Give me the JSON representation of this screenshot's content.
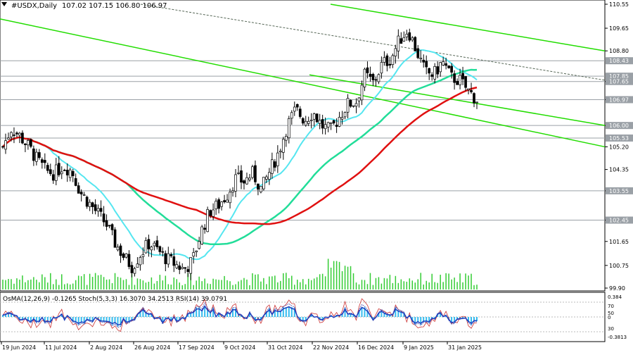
{
  "header": {
    "symbol": "#USDX,Daily",
    "ohlc": "107.02 107.15 106.80 106.97"
  },
  "indicator_label": "OsMA(12,26,9) -0.1265  Stoch(5,3,3) 16.3070 34.2513  RSI(14) 39.0791",
  "colors": {
    "background": "#ffffff",
    "candles": "#000000",
    "grid": "#c8c8c8",
    "level_lines": "#9aa0a6",
    "channel": "#22dd00",
    "ma_fast": "#55e6f0",
    "ma_mid": "#22dd99",
    "ma_slow": "#e01010",
    "volume": "#33cc33",
    "osma": "#33bbee",
    "rsi": "#1f3fbf",
    "stoch_main": "#cc3333",
    "stoch_signal": "#4444aa"
  },
  "chart_data": {
    "type": "candlestick",
    "symbol": "#USDX",
    "timeframe": "Daily",
    "price_axis": {
      "min": 99.9,
      "max": 110.55,
      "ticks": [
        "110.55",
        "109.65",
        "108.80",
        "107.65",
        "106.97",
        "106.00",
        "105.20",
        "104.35",
        "103.55",
        "102.45",
        "101.65",
        "100.75",
        "99.90"
      ],
      "highlighted_levels": [
        "108.43",
        "107.85",
        "107.65",
        "106.97",
        "106.00",
        "105.53",
        "103.55",
        "102.45"
      ]
    },
    "date_labels": [
      "19 Jun 2024",
      "11 Jul 2024",
      "2 Aug 2024",
      "26 Aug 2024",
      "17 Sep 2024",
      "9 Oct 2024",
      "31 Oct 2024",
      "22 Nov 2024",
      "16 Dec 2024",
      "9 Jan 2025",
      "31 Jan 2025"
    ],
    "close_path": [
      105.2,
      105.9,
      105.6,
      105.2,
      104.7,
      104.3,
      104.2,
      104.5,
      104.3,
      103.5,
      103.1,
      102.7,
      102.3,
      101.6,
      101.1,
      100.7,
      101.2,
      101.6,
      101.3,
      101.0,
      100.8,
      100.6,
      100.9,
      102.0,
      102.8,
      103.0,
      103.4,
      104.0,
      103.9,
      104.2,
      103.6,
      104.3,
      105.0,
      106.0,
      106.6,
      106.2,
      106.5,
      106.0,
      105.8,
      106.3,
      106.8,
      106.9,
      107.9,
      107.6,
      108.3,
      108.5,
      109.2,
      109.6,
      108.8,
      108.0,
      107.9,
      108.4,
      107.8,
      107.7,
      107.3,
      106.97
    ],
    "levels": [
      108.43,
      107.85,
      107.65,
      106.97,
      106.0,
      105.53,
      103.55,
      102.45
    ],
    "oscillator_levels": [
      "0.384",
      "70",
      "50",
      "30",
      "0",
      "-0.3813"
    ]
  }
}
